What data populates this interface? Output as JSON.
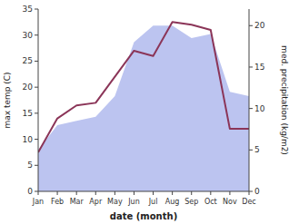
{
  "chart_data": {
    "type": "line",
    "xlabel": "date (month)",
    "ylabel": "max temp (C)",
    "y2label": "med. precipitation (kg/m2)",
    "categories": [
      "Jan",
      "Feb",
      "Mar",
      "Apr",
      "May",
      "Jun",
      "Jul",
      "Aug",
      "Sep",
      "Oct",
      "Nov",
      "Dec"
    ],
    "series": [
      {
        "type": "area",
        "axis": "y2",
        "color": "#bcc4f0",
        "values": [
          5.0,
          8.0,
          8.5,
          9.0,
          11.5,
          18.0,
          20.0,
          20.0,
          18.5,
          19.0,
          12.0,
          11.5
        ]
      },
      {
        "type": "line",
        "color": "#8B3558",
        "values": [
          7.5,
          14.0,
          16.5,
          17.0,
          22.0,
          27.0,
          26.0,
          32.5,
          32.0,
          31.0,
          12.0,
          12.0
        ]
      }
    ],
    "ylim": [
      0,
      35
    ],
    "yticks": [
      0,
      5,
      10,
      15,
      20,
      25,
      30,
      35
    ],
    "y2lim": [
      0,
      22
    ],
    "y2ticks": [
      0,
      5,
      10,
      15,
      20
    ],
    "grid": false
  }
}
